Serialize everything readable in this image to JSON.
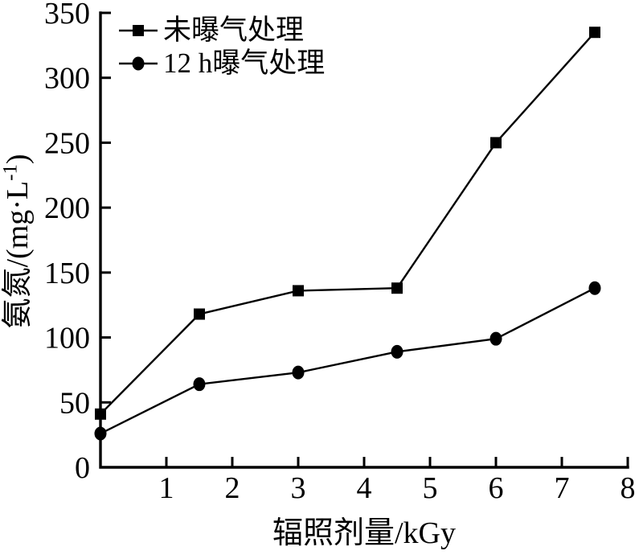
{
  "chart_data": {
    "type": "line",
    "title": "",
    "xlabel": "辐照剂量/kGy",
    "ylabel": "氨氮/(mg·L⁻¹)",
    "ylabel_parts": {
      "prefix": "氨氮/(mg·L",
      "superscript": "-1",
      "suffix": ")"
    },
    "xlim": [
      0,
      8
    ],
    "ylim": [
      0,
      350
    ],
    "xticks": [
      1,
      2,
      3,
      4,
      5,
      6,
      7,
      8
    ],
    "yticks": [
      0,
      50,
      100,
      150,
      200,
      250,
      300,
      350
    ],
    "grid": false,
    "legend_position": "top-left",
    "x": [
      0,
      1.5,
      3,
      4.5,
      6,
      7.5
    ],
    "series": [
      {
        "name": "未曝气处理",
        "marker": "square",
        "color": "#000000",
        "values": [
          41,
          118,
          136,
          138,
          250,
          335
        ]
      },
      {
        "name": "12 h曝气处理",
        "marker": "circle",
        "color": "#000000",
        "values": [
          26,
          64,
          73,
          89,
          99,
          138
        ]
      }
    ],
    "colors": {
      "foreground": "#000000",
      "background": "#ffffff"
    }
  }
}
